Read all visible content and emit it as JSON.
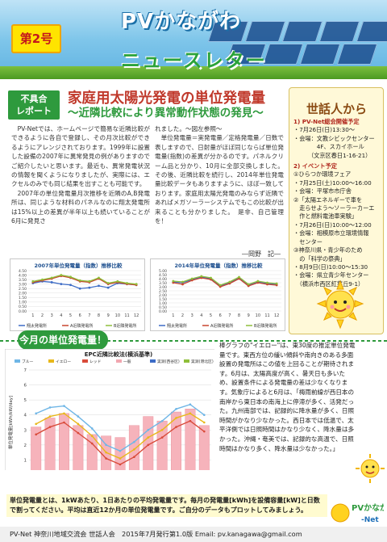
{
  "header": {
    "title": "PVかながわ",
    "subtitle": "ニュースレター",
    "issue": "第2号"
  },
  "article": {
    "tag_line1": "不具合",
    "tag_line2": "レポート",
    "title": "家庭用太陽光発電の単位発電量",
    "subtitle": "〜近隣比較により異常動作状態の発見〜",
    "col1": [
      "PV-Netでは、ホームページで簡易な近隣比較ができるように各自で登録し、その月次比較ができるようにアレンジされております。1999年に設置した設備の2007年に異常発見の例がありますのでご紹介したいと思います。最近も、異常発電状況の情報を聞くようになりましたが、実際には、エクセルのみでも同じ結果を出すことも可能です。",
      "2007年の単位発電量月次推移を近隣のA,B発電所は、同じような材料のパネルなのに翔太発電所は15%以上の差異が半年以上も続いていることが6月に発見さ"
    ],
    "col2": [
      "れました。〜図左参照〜",
      "単位発電量＝実発電量／定格発電量／日数で表しますので、日射量がほぼ同じならば単位発電量(指数)の差異が分かるのです。パネルクリーム品と分かり、10月に全部交換しました。その後、近隣比較を続行し、2014年単位発電量比較データもありますように、ほぼ一致しております。家庭用太陽光発電のみならず近隣であればメガソーラーシステムでもこの比較が出来ることも分かりました。　是非、自己管理を！"
    ],
    "author": "―岡野　記―"
  },
  "side": {
    "title": "世話人から",
    "items": [
      {
        "text": "1) PV-Net総会開催予定",
        "bold": true
      },
      {
        "text": "・7月26日(日)13:30〜",
        "bold": false
      },
      {
        "text": "・会場：文教シビックセンター",
        "bold": false
      },
      {
        "text": "　　　　4F、スカイホール",
        "bold": false
      },
      {
        "text": "　　　（文京区春日1-16-21）",
        "bold": false
      },
      {
        "text": "2) イベント予定",
        "bold": true
      },
      {
        "text": "①ひらつか環境フェア",
        "bold": false
      },
      {
        "text": "・7月25日(土)10:00〜16:00",
        "bold": false
      },
      {
        "text": "・会場：平塚市市庁舎",
        "bold": false
      },
      {
        "text": "②「太陽エネルギーで車を",
        "bold": false
      },
      {
        "text": "　走らせよう〜ソーラーカーエ",
        "bold": false
      },
      {
        "text": "　作と燃料電池車実験」",
        "bold": false
      },
      {
        "text": "・7月26日(日)10:00〜12:00",
        "bold": false
      },
      {
        "text": "・会場：相模原市立環境情報",
        "bold": false
      },
      {
        "text": "　センター",
        "bold": false
      },
      {
        "text": "③神奈川県・青少年のため",
        "bold": false
      },
      {
        "text": "　の「科学の祭典」",
        "bold": false
      },
      {
        "text": "・8月9日(日)10:00〜15:30",
        "bold": false
      },
      {
        "text": "・会場：県立青少年センター",
        "bold": false
      },
      {
        "text": "　（横浜市西区紅葉丘9-1）",
        "bold": false
      }
    ]
  },
  "chart_data": [
    {
      "type": "line",
      "title": "2007年単位発電量（指数）推移比較",
      "categories": [
        "1",
        "2",
        "3",
        "4",
        "5",
        "6",
        "7",
        "8",
        "9",
        "10",
        "11",
        "12"
      ],
      "ylim": [
        0,
        4.5
      ],
      "yticks": [
        "0.00",
        "0.50",
        "1.00",
        "1.50",
        "2.00",
        "2.50",
        "3.00",
        "3.50",
        "4.00",
        "4.50"
      ],
      "series": [
        {
          "name": "翔太発電所",
          "color": "#3d6cc6",
          "values": [
            3.1,
            3.3,
            3.2,
            3.0,
            2.9,
            2.5,
            2.6,
            2.8,
            2.6,
            3.1,
            3.0,
            2.9
          ]
        },
        {
          "name": "A近隣発電所",
          "color": "#c8452f",
          "values": [
            3.2,
            3.4,
            3.6,
            3.9,
            3.7,
            3.3,
            3.2,
            3.6,
            3.0,
            3.2,
            3.0,
            2.9
          ]
        },
        {
          "name": "B近隣発電所",
          "color": "#8fbf3a",
          "values": [
            3.3,
            3.5,
            3.7,
            4.0,
            3.8,
            3.4,
            3.3,
            3.7,
            3.1,
            3.3,
            3.1,
            3.0
          ]
        }
      ]
    },
    {
      "type": "line",
      "title": "2014年単位発電量（指数）推移比較",
      "categories": [
        "1",
        "2",
        "3",
        "4",
        "5",
        "6",
        "7",
        "8",
        "9",
        "10",
        "11",
        "12"
      ],
      "ylim": [
        0,
        5.0
      ],
      "yticks": [
        "0.00",
        "0.50",
        "1.00",
        "1.50",
        "2.00",
        "2.50",
        "3.00",
        "3.50",
        "4.00",
        "4.50",
        "5.00"
      ],
      "series": [
        {
          "name": "翔太発電所",
          "color": "#3d6cc6",
          "values": [
            3.6,
            3.5,
            3.9,
            4.2,
            4.0,
            3.1,
            3.5,
            4.1,
            3.2,
            3.6,
            3.4,
            3.3
          ]
        },
        {
          "name": "A近隣発電所",
          "color": "#c8452f",
          "values": [
            3.5,
            3.3,
            3.8,
            4.1,
            3.9,
            3.0,
            3.4,
            4.0,
            3.1,
            3.5,
            3.3,
            3.2
          ]
        },
        {
          "name": "B近隣発電所",
          "color": "#8fbf3a",
          "values": [
            3.7,
            3.6,
            4.0,
            4.3,
            4.1,
            3.2,
            3.6,
            4.2,
            3.3,
            3.7,
            3.5,
            3.4
          ]
        }
      ]
    },
    {
      "type": "bar",
      "title": "EPC近隣比較法(横浜基準)",
      "ylabel": "単位発電量[kWh/kW/day]",
      "ylim": [
        0,
        7
      ],
      "yticks": [
        "0",
        "1",
        "2",
        "3",
        "4",
        "5",
        "6",
        "7"
      ],
      "categories": [
        "6",
        "7",
        "8",
        "9",
        "10",
        "11",
        "12",
        "1",
        "2",
        "3",
        "4",
        "5",
        "6"
      ],
      "year_labels": [
        "2014年",
        "2015年"
      ],
      "legend": [
        "ブルー",
        "イエロー",
        "レッド",
        "一般",
        "実測(西谷区)",
        "実測(港北区)"
      ],
      "bars": [
        3.2,
        3.8,
        4.1,
        3.3,
        2.7,
        2.6,
        2.5,
        3.3,
        3.9,
        3.6,
        4.2,
        4.4,
        3.3
      ],
      "lines": [
        {
          "name": "ブルー",
          "color": "#6fb6e6",
          "values": [
            4.1,
            4.5,
            4.6,
            3.9,
            3.1,
            2.0,
            1.6,
            2.2,
            3.0,
            3.6,
            4.4,
            4.7,
            4.0
          ]
        },
        {
          "name": "イエロー",
          "color": "#e8b81a",
          "values": [
            3.4,
            3.9,
            4.1,
            3.4,
            2.6,
            1.5,
            1.1,
            1.7,
            2.5,
            3.0,
            3.8,
            4.1,
            3.5
          ]
        },
        {
          "name": "レッド",
          "color": "#d94b3a",
          "values": [
            2.7,
            3.2,
            3.5,
            2.8,
            2.1,
            1.1,
            0.7,
            1.2,
            2.0,
            2.5,
            3.2,
            3.6,
            2.9
          ]
        }
      ]
    }
  ],
  "monthly": {
    "label": "今月の単位発電量！",
    "note": "棒グラフの\"イエロー\"は、東30度の推定単位発電量です。東西方位の緩い傾斜や南向きのある多面設置の発電所はこの値を上回ることが期待されます。6月は、太陽高度が高く、暑天日も多いため、設置条件による発電量の差は少なくなります。気象庁によると6月は、「梅雨前線が西日本の南岸から東日本の南海上に停滞が多く、活発だった。九州南部では、記録的に降水量が多く、日照時間がかなり少なかった。西日本では低温で、太平洋側では日照時間はかなり少なく、降水量は多かった。沖縄・奄美では、記録的な高温で、日照時間はかなり多く、降水量は少なかった。」"
  },
  "bottom": {
    "explain": "単位発電量とは、1kWあたり、1日あたりの平均発電量です。毎月の発電量[kWh]を設備容量[kW]と日数で割ってください。平均は直近12か月の単位発電量です。ご自分のデータもプロットしてみましょう。",
    "footer": "PV-Net 神奈川地域交流会 世話人会　2015年7月発行第1.0版 Email: pv.kanagawa@gmail.com",
    "logo_text": "PVかながわ"
  }
}
